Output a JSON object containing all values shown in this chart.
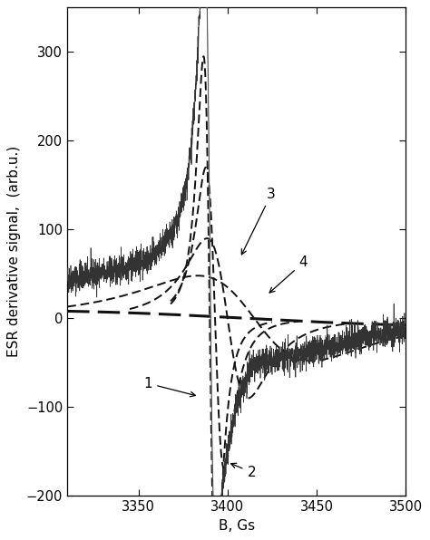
{
  "title": "",
  "xlabel": "B, Gs",
  "ylabel": "ESR derivative signal,  (arb.u.)",
  "xlim": [
    3310,
    3500
  ],
  "ylim": [
    -200,
    350
  ],
  "yticks": [
    -200,
    -100,
    0,
    100,
    200,
    300
  ],
  "xticks": [
    3350,
    3400,
    3450,
    3500
  ],
  "background_color": "#ffffff",
  "label_fontsize": 11,
  "tick_fontsize": 10.5
}
